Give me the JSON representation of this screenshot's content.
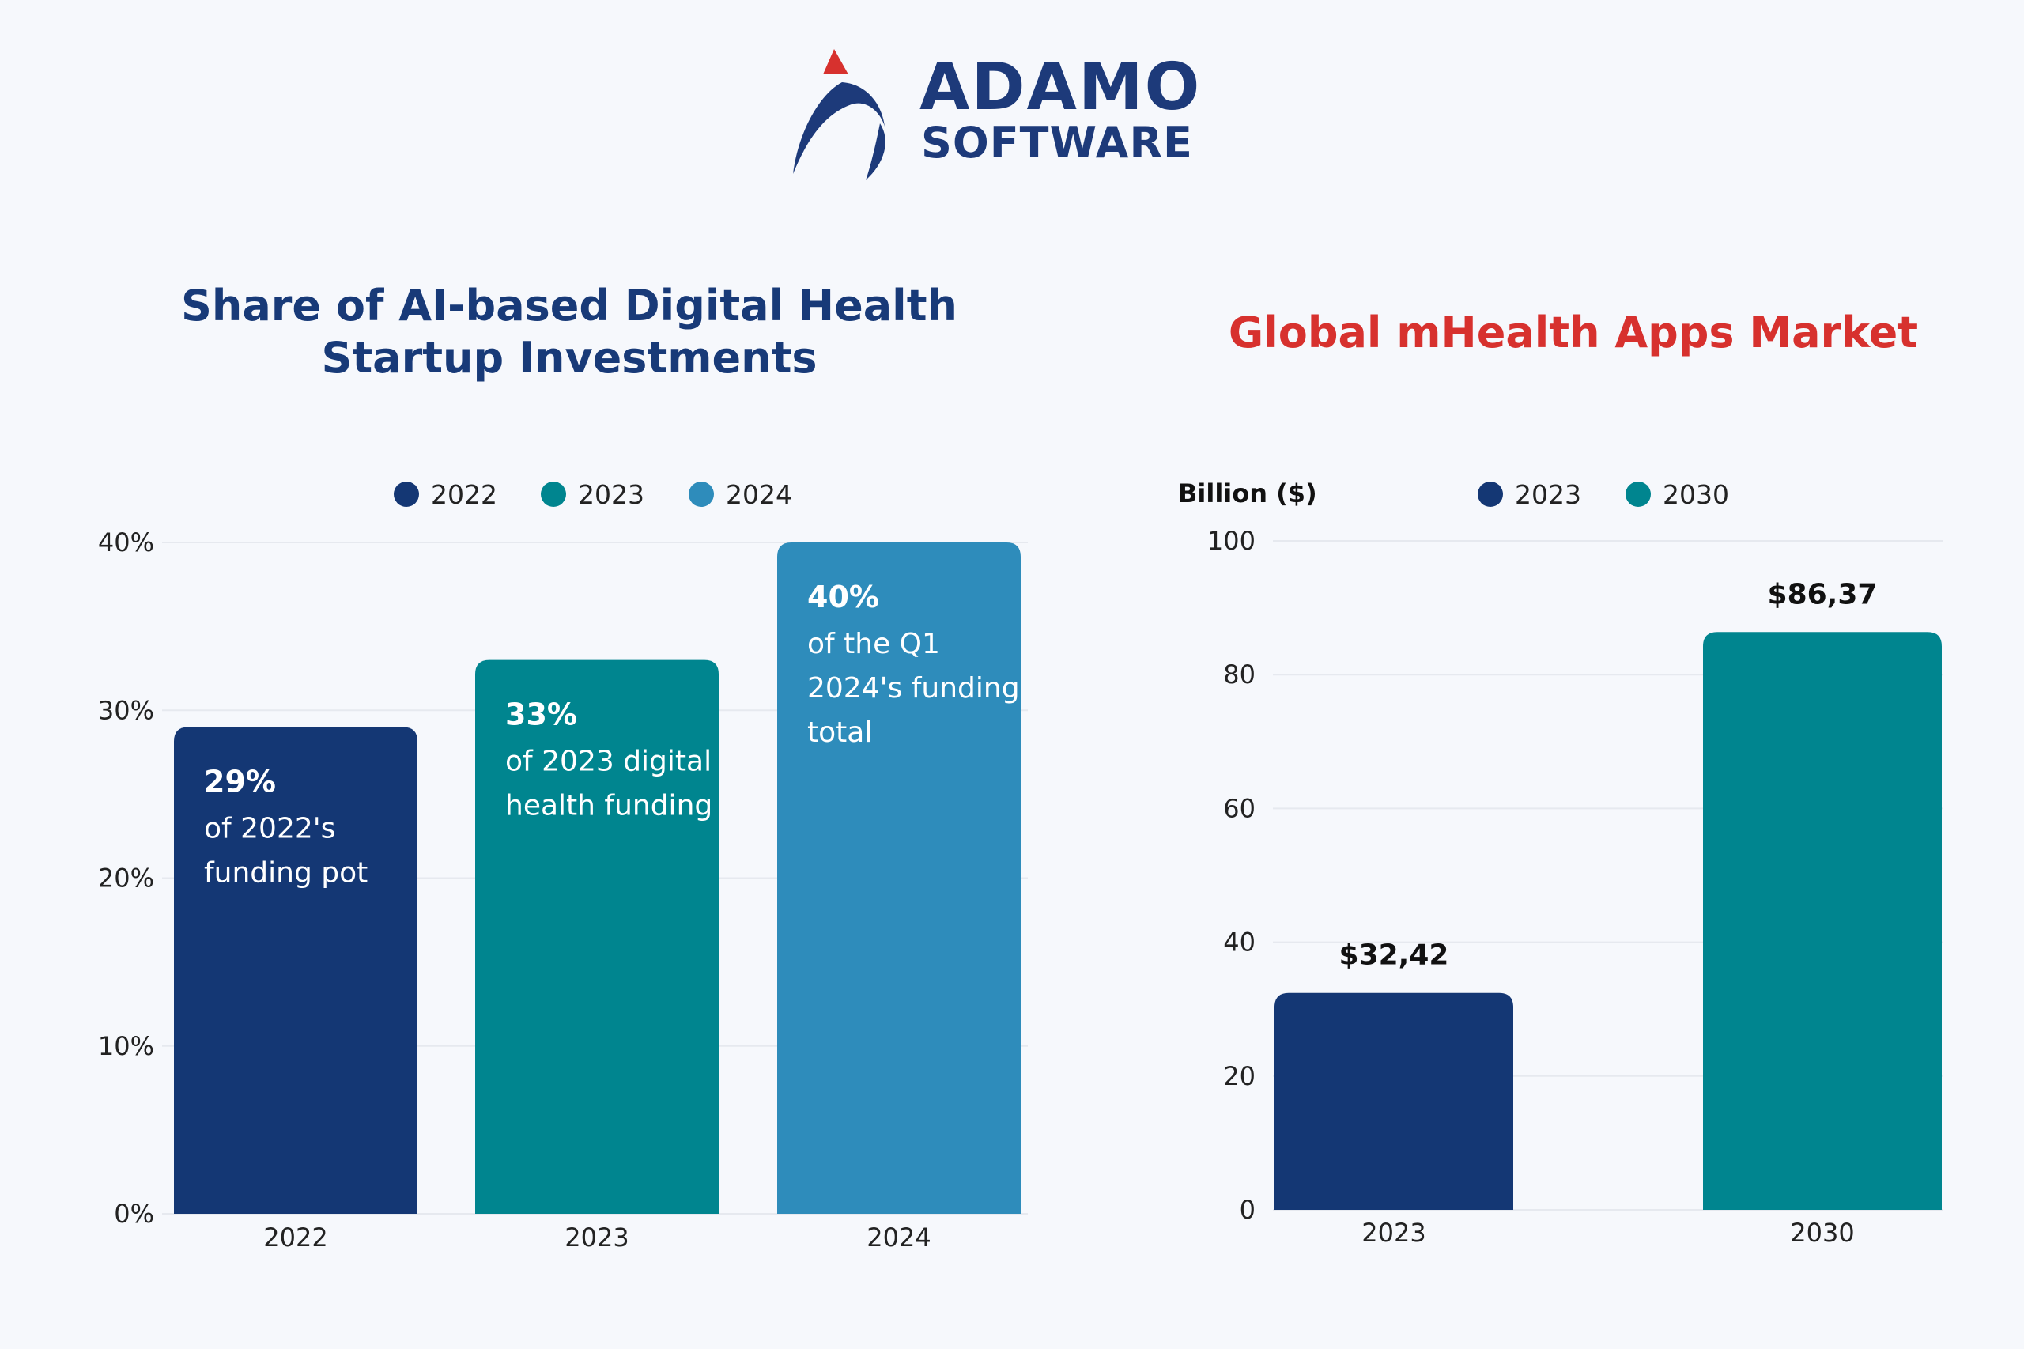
{
  "brand": {
    "name_line1": "ADAMO",
    "name_line2": "SOFTWARE",
    "colors": {
      "navy": "#1d3a7a",
      "red": "#d7312e"
    }
  },
  "chart_data": [
    {
      "type": "bar",
      "title": "Share of AI-based Digital Health Startup Investments",
      "title_lines": [
        "Share of AI-based Digital Health",
        "Startup Investments"
      ],
      "categories": [
        "2022",
        "2023",
        "2024"
      ],
      "values": [
        29,
        33,
        40
      ],
      "unit": "%",
      "ylim": [
        0,
        40
      ],
      "yticks": [
        "0%",
        "10%",
        "20%",
        "30%",
        "40%"
      ],
      "legend": [
        {
          "label": "2022",
          "color": "#143774"
        },
        {
          "label": "2023",
          "color": "#00858f"
        },
        {
          "label": "2024",
          "color": "#2e8cbb"
        }
      ],
      "bar_labels": [
        {
          "value": "29%",
          "lines": [
            "of 2022's",
            "funding pot"
          ]
        },
        {
          "value": "33%",
          "lines": [
            "of 2023 digital",
            "health funding"
          ]
        },
        {
          "value": "40%",
          "lines": [
            "of the Q1",
            "2024's funding",
            "total"
          ]
        }
      ],
      "grid": true,
      "legend_position": "top-center"
    },
    {
      "type": "bar",
      "title": "Global mHealth Apps Market",
      "ylabel": "Billion ($)",
      "categories": [
        "2023",
        "2030"
      ],
      "values": [
        32.42,
        86.37
      ],
      "value_labels": [
        "$32,42",
        "$86,37"
      ],
      "ylim": [
        0,
        100
      ],
      "yticks": [
        "0",
        "20",
        "40",
        "60",
        "80",
        "100"
      ],
      "legend": [
        {
          "label": "2023",
          "color": "#143774"
        },
        {
          "label": "2030",
          "color": "#00858f"
        }
      ],
      "grid": true,
      "legend_position": "top-center"
    }
  ]
}
